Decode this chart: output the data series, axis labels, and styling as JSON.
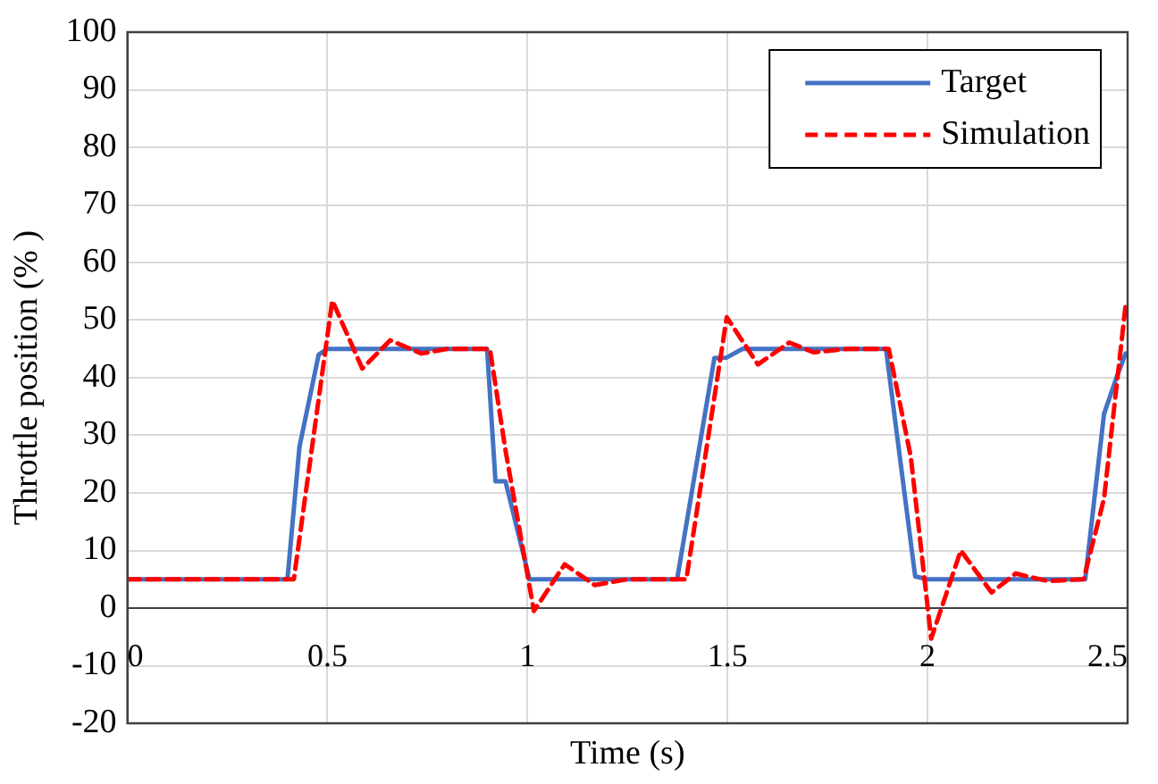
{
  "chart_data": {
    "type": "line",
    "xlabel": "Time (s)",
    "ylabel": "Throttle position (% )",
    "xlim": [
      0,
      2.5
    ],
    "xticks": [
      0,
      0.5,
      1,
      1.5,
      2,
      2.5
    ],
    "ylim": [
      -20,
      100
    ],
    "yticks": [
      -20,
      -10,
      0,
      10,
      20,
      30,
      40,
      50,
      60,
      70,
      80,
      90,
      100
    ],
    "grid": true,
    "legend": "top right",
    "marker": "none",
    "series": [
      {
        "name": "Target",
        "color": "#4472c4",
        "line_style": "solid",
        "x": [
          0,
          0.4,
          0.43,
          0.478,
          0.5,
          0.899,
          0.92,
          0.945,
          1.005,
          1.374,
          1.467,
          1.498,
          1.537,
          1.896,
          1.969,
          2.0,
          2.394,
          2.441,
          2.472,
          2.495
        ],
        "values": [
          5,
          5,
          28,
          44,
          45,
          45,
          22,
          22,
          5,
          5,
          43.4,
          43.5,
          45,
          45,
          5.5,
          5,
          5,
          33.7,
          40,
          44.2
        ]
      },
      {
        "name": "Simulation",
        "color": "#ff0000",
        "line_style": "dashed",
        "x": [
          0,
          0.416,
          0.512,
          0.587,
          0.657,
          0.735,
          0.8,
          0.906,
          0.945,
          1.016,
          1.093,
          1.168,
          1.25,
          1.397,
          1.498,
          1.576,
          1.654,
          1.716,
          1.8,
          1.903,
          1.958,
          2.009,
          2.083,
          2.16,
          2.22,
          2.3,
          2.39,
          2.441,
          2.495
        ],
        "values": [
          5,
          5,
          53.4,
          41.6,
          46.5,
          44.2,
          45,
          45,
          27.4,
          -0.5,
          7.6,
          4,
          5,
          5,
          50.5,
          42.3,
          46.1,
          44.4,
          45,
          45,
          26.3,
          -5.3,
          10,
          2.7,
          6,
          4.7,
          5,
          19,
          52.6
        ]
      }
    ]
  }
}
